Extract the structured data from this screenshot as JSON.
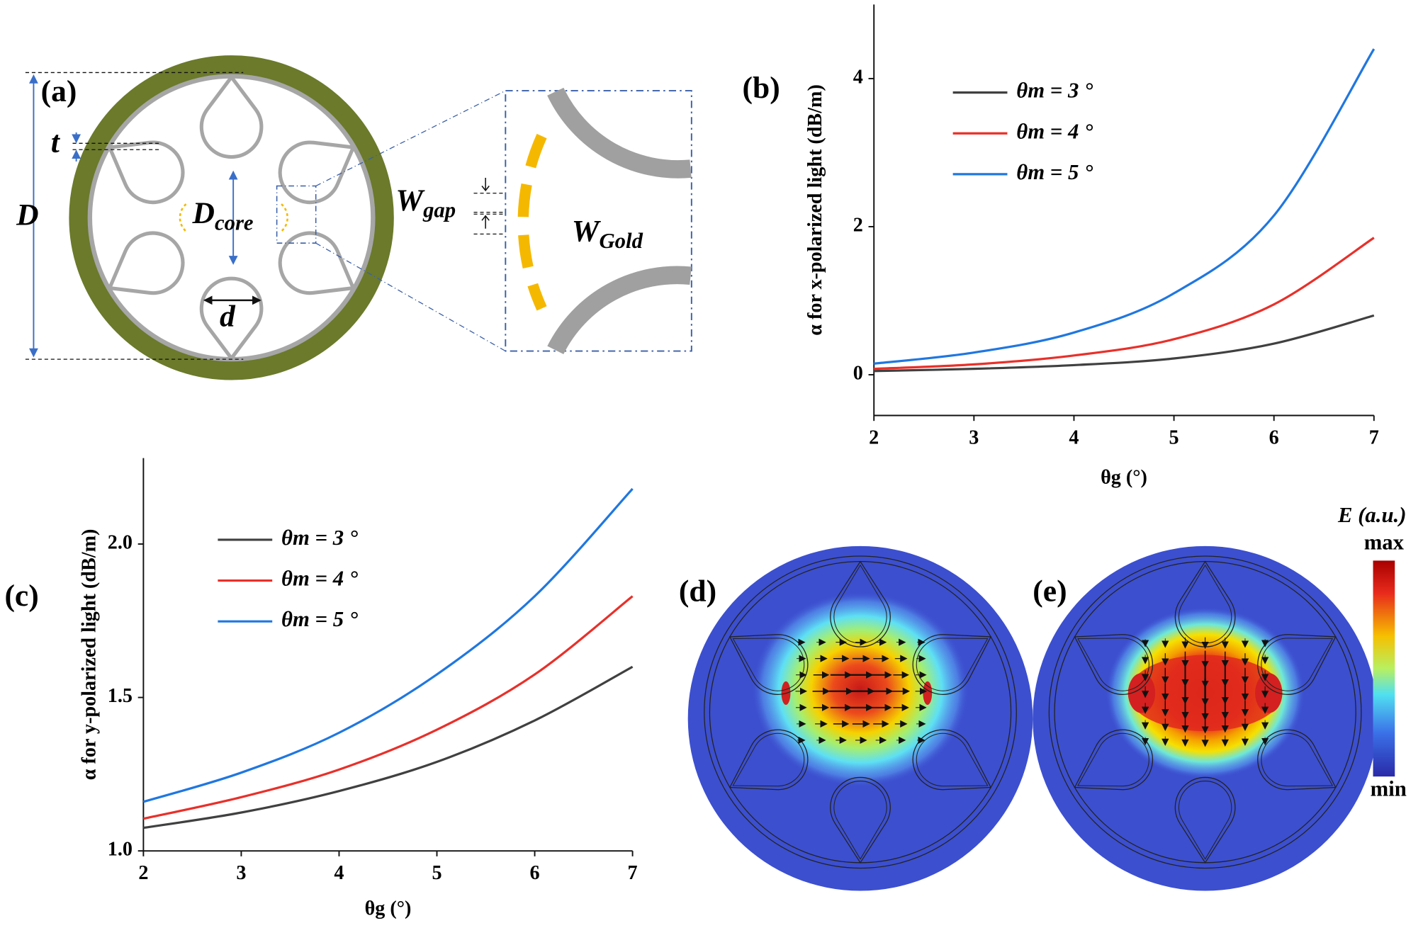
{
  "chart_data": [
    {
      "type": "line",
      "y_label": "α for x-polarized light (dB/m)",
      "x_label": "θg (°)",
      "x": [
        2,
        3,
        4,
        5,
        6,
        7
      ],
      "xlim": [
        2,
        7
      ],
      "xticks": [
        2,
        3,
        4,
        5,
        6,
        7
      ],
      "ylim": [
        -0.55,
        5
      ],
      "yticks": [
        0,
        2,
        4
      ],
      "series": [
        {
          "name": "θm = 3 °",
          "color": "#404040",
          "values": [
            0.05,
            0.08,
            0.13,
            0.22,
            0.42,
            0.8
          ]
        },
        {
          "name": "θm = 4 °",
          "color": "#e8302a",
          "values": [
            0.08,
            0.14,
            0.26,
            0.48,
            0.95,
            1.85
          ]
        },
        {
          "name": "θm = 5 °",
          "color": "#1f77e0",
          "values": [
            0.15,
            0.3,
            0.57,
            1.1,
            2.15,
            4.4
          ]
        }
      ]
    },
    {
      "type": "line",
      "y_label": "α for y-polarized light (dB/m)",
      "x_label": "θg (°)",
      "x": [
        2,
        3,
        4,
        5,
        6,
        7
      ],
      "xlim": [
        2,
        7
      ],
      "xticks": [
        2,
        3,
        4,
        5,
        6,
        7
      ],
      "ylim": [
        1,
        2.28
      ],
      "yticks": [
        {
          "value": 1,
          "label": "1.0"
        },
        1.5,
        {
          "value": 2,
          "label": "2.0"
        }
      ],
      "series": [
        {
          "name": "θm = 3 °",
          "color": "#404040",
          "values": [
            1.075,
            1.125,
            1.195,
            1.29,
            1.425,
            1.6
          ]
        },
        {
          "name": "θm = 4 °",
          "color": "#e8302a",
          "values": [
            1.105,
            1.175,
            1.265,
            1.395,
            1.575,
            1.83
          ]
        },
        {
          "name": "θm = 5 °",
          "color": "#1f77e0",
          "values": [
            1.16,
            1.255,
            1.385,
            1.575,
            1.83,
            2.18
          ]
        }
      ]
    }
  ],
  "panel_labels": [
    "(a)",
    "(b)",
    "(c)",
    "(d)",
    "(e)"
  ],
  "diagram": {
    "t": "t",
    "D": "D",
    "d": "d",
    "D_core": {
      "main": "D",
      "sub": "core"
    },
    "W_gap": {
      "main": "W",
      "sub": "gap"
    },
    "W_gold": {
      "main": "W",
      "sub": "Gold"
    }
  },
  "colorbar": {
    "title": "E (a.u.)",
    "max": "max",
    "min": "min"
  }
}
